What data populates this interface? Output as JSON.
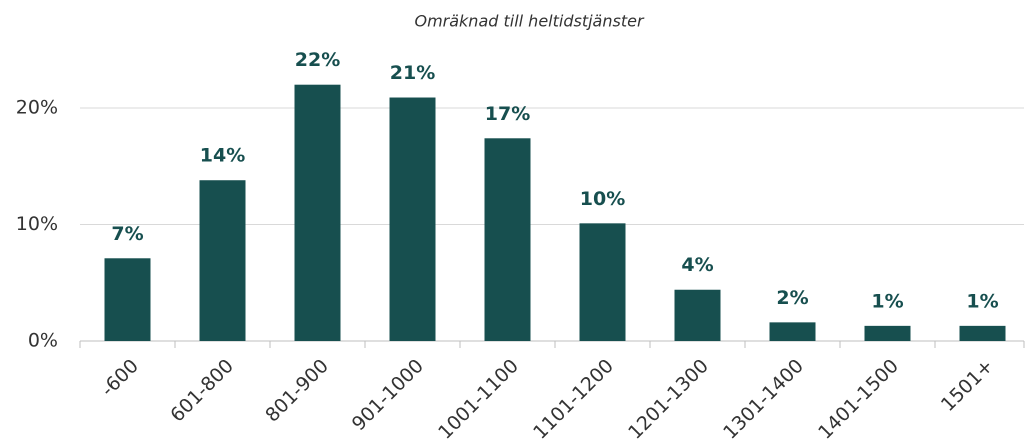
{
  "chart_data": {
    "type": "bar",
    "subtitle": "Omräknad till heltidstjänster",
    "categories": [
      "-600",
      "601-800",
      "801-900",
      "901-1000",
      "1001-1100",
      "1101-1200",
      "1201-1300",
      "1301-1400",
      "1401-1500",
      "1501+"
    ],
    "values": [
      7.1,
      13.8,
      22.0,
      20.9,
      17.4,
      10.1,
      4.4,
      1.6,
      1.3,
      1.3
    ],
    "value_labels": [
      "7%",
      "14%",
      "22%",
      "21%",
      "17%",
      "10%",
      "4%",
      "2%",
      "1%",
      "1%"
    ],
    "color": "#174f4f",
    "ylim": [
      0,
      23
    ],
    "yticks": [
      {
        "value": 0,
        "label": "0%"
      },
      {
        "value": 10,
        "label": "10%"
      },
      {
        "value": 20,
        "label": "20%"
      }
    ],
    "grid": true
  }
}
